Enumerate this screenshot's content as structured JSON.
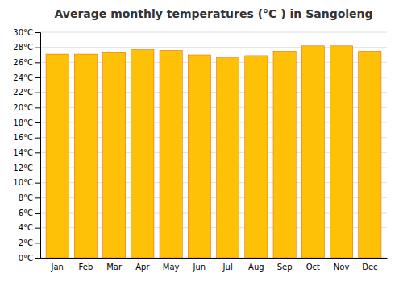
{
  "chart_data": {
    "type": "bar",
    "title": "Average monthly temperatures (°C ) in Sangoleng",
    "categories": [
      "Jan",
      "Feb",
      "Mar",
      "Apr",
      "May",
      "Jun",
      "Jul",
      "Aug",
      "Sep",
      "Oct",
      "Nov",
      "Dec"
    ],
    "values": [
      27.1,
      27.1,
      27.3,
      27.7,
      27.6,
      27.0,
      26.6,
      26.9,
      27.5,
      28.2,
      28.2,
      27.5
    ],
    "color": "#FFC107",
    "ylim": [
      0,
      30
    ],
    "yticks": [
      {
        "value": 0,
        "label": "0°C"
      },
      {
        "value": 2,
        "label": "2°C"
      },
      {
        "value": 4,
        "label": "4°C"
      },
      {
        "value": 6,
        "label": "6°C"
      },
      {
        "value": 8,
        "label": "8°C"
      },
      {
        "value": 10,
        "label": "10°C"
      },
      {
        "value": 12,
        "label": "12°C"
      },
      {
        "value": 14,
        "label": "14°C"
      },
      {
        "value": 16,
        "label": "16°C"
      },
      {
        "value": 18,
        "label": "18°C"
      },
      {
        "value": 20,
        "label": "20°C"
      },
      {
        "value": 22,
        "label": "22°C"
      },
      {
        "value": 24,
        "label": "24°C"
      },
      {
        "value": 26,
        "label": "26°C"
      },
      {
        "value": 28,
        "label": "28°C"
      },
      {
        "value": 30,
        "label": "30°C"
      }
    ],
    "grid": true
  }
}
